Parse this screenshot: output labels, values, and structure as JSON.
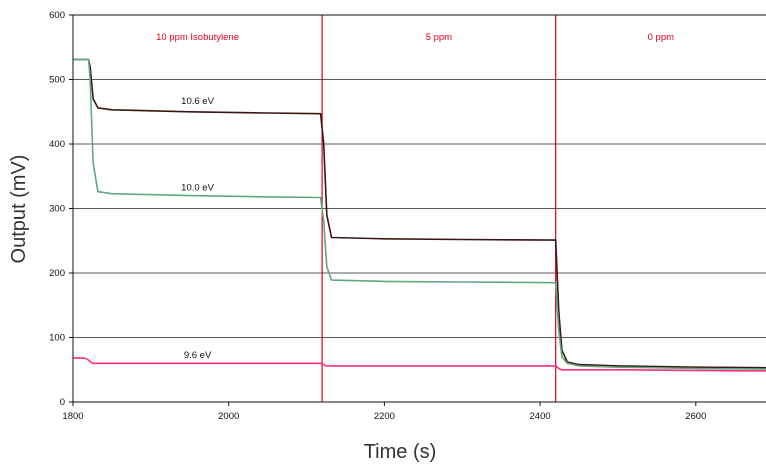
{
  "chart_data": {
    "type": "line",
    "xlabel": "Time (s)",
    "ylabel": "Output (mV)",
    "xlim": [
      1800,
      2700
    ],
    "ylim": [
      0,
      600
    ],
    "xticks": [
      1800,
      2000,
      2200,
      2400,
      2600
    ],
    "yticks": [
      0,
      100,
      200,
      300,
      400,
      500,
      600
    ],
    "grid": "horizontal",
    "legend": "none",
    "colors": {
      "markers": "#e0001b",
      "region_text": "#e0001b",
      "grid": "#222222"
    },
    "markers": [
      {
        "x": 2120,
        "label": "10 ppm Isobutylene",
        "start": 1800
      },
      {
        "x": 2420,
        "label": "5 ppm",
        "start": 2120
      },
      {
        "x": null,
        "label": "0 ppm",
        "start": 2420
      }
    ],
    "series": [
      {
        "name": "10.6 eV",
        "color": "#3b1414",
        "label_at": [
          1960,
          462
        ],
        "x": [
          1800,
          1820,
          1822,
          1826,
          1832,
          1850,
          1950,
          2050,
          2118,
          2122,
          2126,
          2132,
          2200,
          2300,
          2420,
          2424,
          2428,
          2435,
          2450,
          2500,
          2600,
          2700
        ],
        "y": [
          531,
          531,
          520,
          470,
          456,
          453,
          450,
          448,
          447,
          400,
          290,
          255,
          253,
          252,
          251,
          140,
          80,
          62,
          58,
          56,
          54,
          53
        ]
      },
      {
        "name": "10.0 eV",
        "color": "#5fa882",
        "label_at": [
          1960,
          328
        ],
        "x": [
          1800,
          1820,
          1822,
          1826,
          1832,
          1850,
          1950,
          2050,
          2118,
          2122,
          2126,
          2132,
          2200,
          2300,
          2420,
          2424,
          2428,
          2435,
          2450,
          2500,
          2600,
          2700
        ],
        "y": [
          531,
          531,
          500,
          370,
          326,
          323,
          320,
          318,
          317,
          280,
          210,
          189,
          187,
          186,
          185,
          110,
          70,
          60,
          56,
          54,
          52,
          51
        ]
      },
      {
        "name": "9.6 eV",
        "color": "#ff2d7a",
        "label_at": [
          1960,
          68
        ],
        "x": [
          1800,
          1815,
          1820,
          1825,
          1900,
          2000,
          2118,
          2122,
          2125,
          2200,
          2300,
          2420,
          2424,
          2428,
          2500,
          2600,
          2700
        ],
        "y": [
          68,
          68,
          65,
          60,
          60,
          60,
          60,
          58,
          56,
          56,
          56,
          56,
          52,
          50,
          50,
          49,
          48
        ]
      }
    ]
  }
}
